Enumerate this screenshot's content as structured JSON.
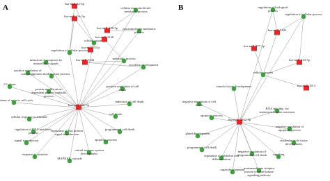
{
  "panels": [
    {
      "label": "A",
      "mirnas": [
        "hsa-miR-32-3p",
        "hsa-miR-23c-5p",
        "hsa-miR-128-5p",
        "hsa-miR-3146",
        "hsa-miR-551a",
        "hsa-miR-1246",
        "hsa-miR-145-5p"
      ],
      "terms": [
        "cellular macromolecule metabolic process",
        "macromolecule metabolic process",
        "cellular process",
        "metabolic process",
        "regulation of cellular process",
        "induction of apoptosis by intracellular signals",
        "positive regulation of autophagy",
        "G1 phase",
        "G1 phase of mitotic cell cycle",
        "protein modification process",
        "protein modification-dependent protein catabolic process",
        "cellular response to stimulus",
        "regulation of RNA metabolic process",
        "signal transduction",
        "response to stimulus",
        "regulation of Ras protein signal transduction",
        "MAPKKK cascade",
        "central nervous system development",
        "positive regulation of cell death",
        "induction of cell death",
        "apoptotic process",
        "ectoderm development",
        "programmed cell death",
        "cell death"
      ]
    },
    {
      "label": "B",
      "mirnas": [
        "hsa-miR-518b",
        "hsa-miR-877-5p",
        "hsa-miR-424-5p",
        "hsa-miR-1913",
        "hsa-miR-3202-5p"
      ],
      "terms": [
        "regulation of biological process",
        "regulation of cellular process",
        "cellular process",
        "negative regulation of cell death",
        "muscle tissue development",
        "RNA splicing, via transesterification reactions",
        "apoptotic process",
        "negative regulation of apoptotic process",
        "gland development",
        "striated muscle tissue development",
        "programmed cell death",
        "regulation of epithelial cell differentiation",
        "negative regulation of programmed cell death",
        "transmembrane receptor protein tyrosine kinase signaling pathway",
        "signaling",
        "organ development"
      ]
    }
  ]
}
